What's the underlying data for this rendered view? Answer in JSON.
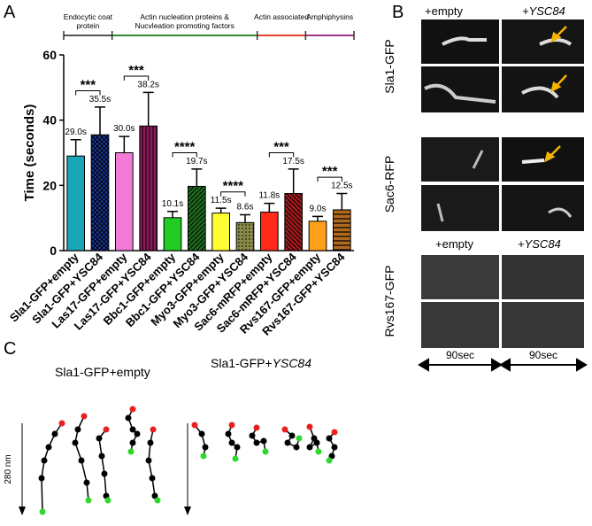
{
  "panel_labels": {
    "a": "A",
    "b": "B",
    "c": "C"
  },
  "chart_data": {
    "type": "bar",
    "y_label": "Time (seconds)",
    "groups": [
      {
        "name": "Endocytic coat protein",
        "color": "#555555"
      },
      {
        "name": "Actin nucleation proteins & Nucvleation promoting factors",
        "color": "#2e8b2e"
      },
      {
        "name": "Actin associated",
        "color": "#e8452a"
      },
      {
        "name": "Amphiphysins",
        "color": "#a0358a"
      }
    ],
    "categories": [
      "Sla1-GFP+empty",
      "Sla1-GFP+YSC84",
      "Las17-GFP+empty",
      "Las17-GFP+YSC84",
      "Bbc1-GFP+empty",
      "Bbc1-GFP+YSC84",
      "Myo3-GFP+empty",
      "Myo3-GFP+YSC84",
      "Sac6-mRFP+empty",
      "Sac6-mRFP+YSC84",
      "Rvs167-GFP+empty",
      "Rvs167-GFP+YSC84"
    ],
    "values": [
      29.0,
      35.5,
      30.0,
      38.2,
      10.1,
      19.7,
      11.5,
      8.6,
      11.8,
      17.5,
      9.0,
      12.5
    ],
    "value_labels": [
      "29.0s",
      "35.5s",
      "30.0s",
      "38.2s",
      "10.1s",
      "19.7s",
      "11.5s",
      "8.6s",
      "11.8s",
      "17.5s",
      "9.0s",
      "12.5s"
    ],
    "errors": [
      5,
      8.5,
      5,
      10.3,
      1.9,
      5.3,
      1.5,
      2.4,
      2.7,
      7.5,
      1.5,
      5
    ],
    "colors": [
      "#1aa6b7",
      "#1a3aa8",
      "#f37ad6",
      "#8b1a5c",
      "#22cc22",
      "#1d6b1d",
      "#ffff33",
      "#8a8a4a",
      "#ff2a1a",
      "#a01a1a",
      "#ffa01a",
      "#b06a20"
    ],
    "significance": [
      "***",
      "***",
      "****",
      "****",
      "***",
      "***"
    ],
    "ylim": [
      0,
      60
    ],
    "yticks": [
      0,
      20,
      40,
      60
    ]
  },
  "panel_b": {
    "header_empty": "+empty",
    "header_ysc84": "+YSC84",
    "rows": [
      "Sla1-GFP",
      "Sac6-RFP",
      "Rvs167-GFP"
    ],
    "scale": "90sec"
  },
  "panel_c": {
    "title_empty": "Sla1-GFP+empty",
    "title_prefix": "Sla1-GFP+",
    "title_italic": "YSC84",
    "scale": "280 nm"
  }
}
